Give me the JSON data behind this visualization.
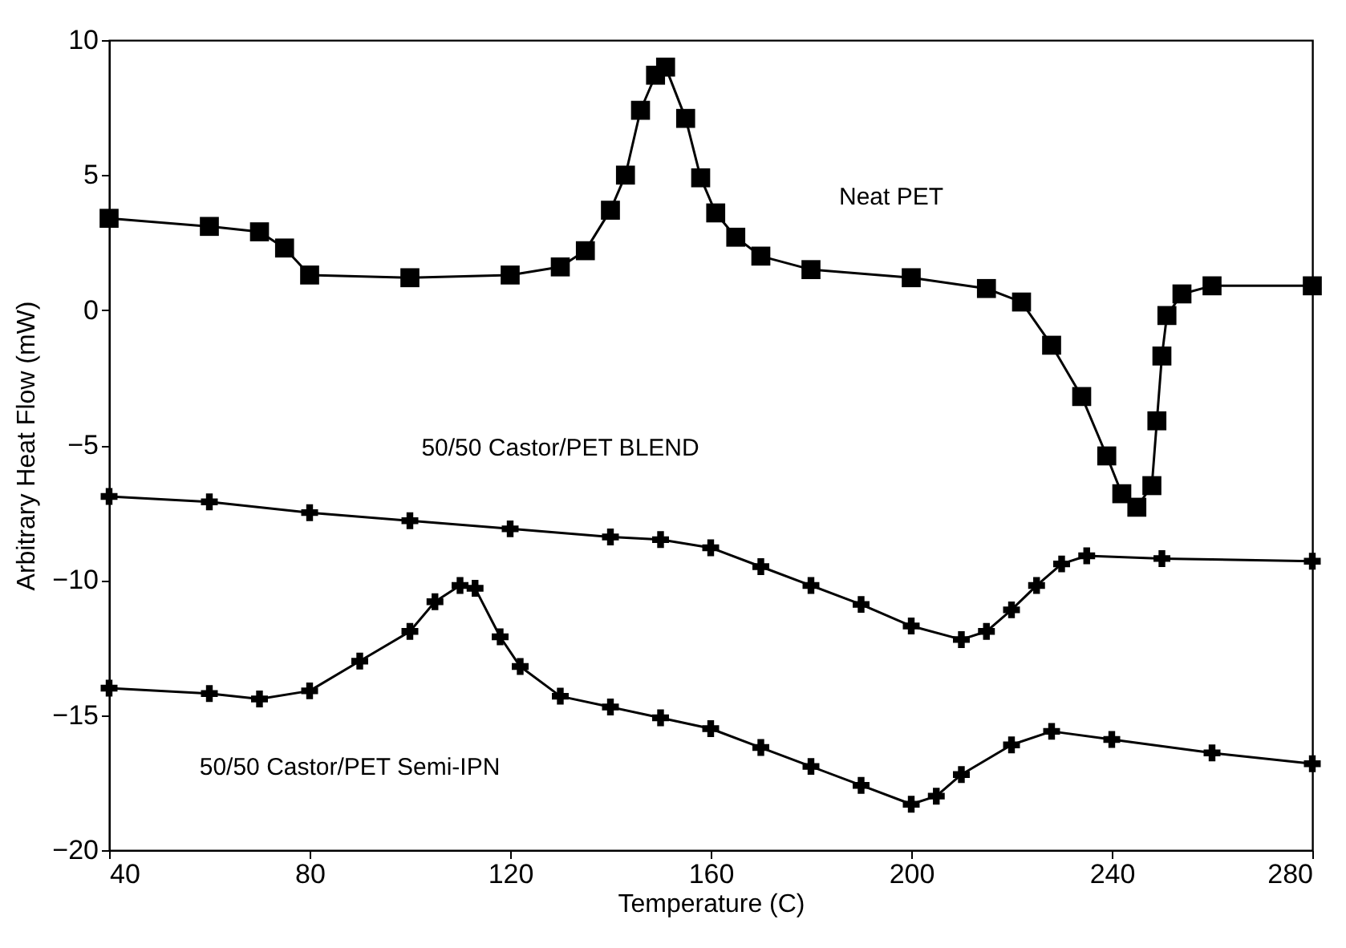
{
  "chart_data": {
    "type": "line",
    "xlabel": "Temperature (C)",
    "ylabel": "Arbitrary Heat Flow (mW)",
    "xlim": [
      40,
      280
    ],
    "xticks": [
      40,
      80,
      120,
      160,
      200,
      240,
      280
    ],
    "ylim": [
      -20,
      10
    ],
    "yticks": [
      -20,
      -15,
      -10,
      -5,
      0,
      5,
      10
    ],
    "grid": false,
    "series": [
      {
        "name": "Neat PET",
        "color": "#000000",
        "marker": "square",
        "x": [
          40,
          60,
          70,
          75,
          80,
          100,
          120,
          130,
          135,
          140,
          143,
          146,
          149,
          151,
          155,
          158,
          161,
          165,
          170,
          180,
          200,
          215,
          222,
          228,
          234,
          239,
          242,
          245,
          248,
          249,
          250,
          251,
          254,
          260,
          280
        ],
        "values": [
          3.4,
          3.1,
          2.9,
          2.3,
          1.3,
          1.2,
          1.3,
          1.6,
          2.2,
          3.7,
          5.0,
          7.4,
          8.7,
          9.0,
          7.1,
          4.9,
          3.6,
          2.7,
          2.0,
          1.5,
          1.2,
          0.8,
          0.3,
          -1.3,
          -3.2,
          -5.4,
          -6.8,
          -7.3,
          -6.5,
          -4.1,
          -1.7,
          -0.2,
          0.6,
          0.9,
          0.9
        ]
      },
      {
        "name": "50/50 Castor/PET BLEND",
        "color": "#000000",
        "marker": "cross",
        "x": [
          40,
          60,
          80,
          100,
          120,
          140,
          150,
          160,
          170,
          180,
          190,
          200,
          210,
          215,
          220,
          225,
          230,
          235,
          250,
          280
        ],
        "values": [
          -6.9,
          -7.1,
          -7.5,
          -7.8,
          -8.1,
          -8.4,
          -8.5,
          -8.8,
          -9.5,
          -10.2,
          -10.9,
          -11.7,
          -12.2,
          -11.9,
          -11.1,
          -10.2,
          -9.4,
          -9.1,
          -9.2,
          -9.3
        ]
      },
      {
        "name": "50/50 Castor/PET Semi-IPN",
        "color": "#000000",
        "marker": "cross",
        "x": [
          40,
          60,
          70,
          80,
          90,
          100,
          105,
          110,
          113,
          118,
          122,
          130,
          140,
          150,
          160,
          170,
          180,
          190,
          200,
          205,
          210,
          220,
          228,
          240,
          260,
          280
        ],
        "values": [
          -14.0,
          -14.2,
          -14.4,
          -14.1,
          -13.0,
          -11.9,
          -10.8,
          -10.2,
          -10.3,
          -12.1,
          -13.2,
          -14.3,
          -14.7,
          -15.1,
          -15.5,
          -16.2,
          -16.9,
          -17.6,
          -18.3,
          -18.0,
          -17.2,
          -16.1,
          -15.6,
          -15.9,
          -16.4,
          -16.8
        ]
      }
    ]
  }
}
